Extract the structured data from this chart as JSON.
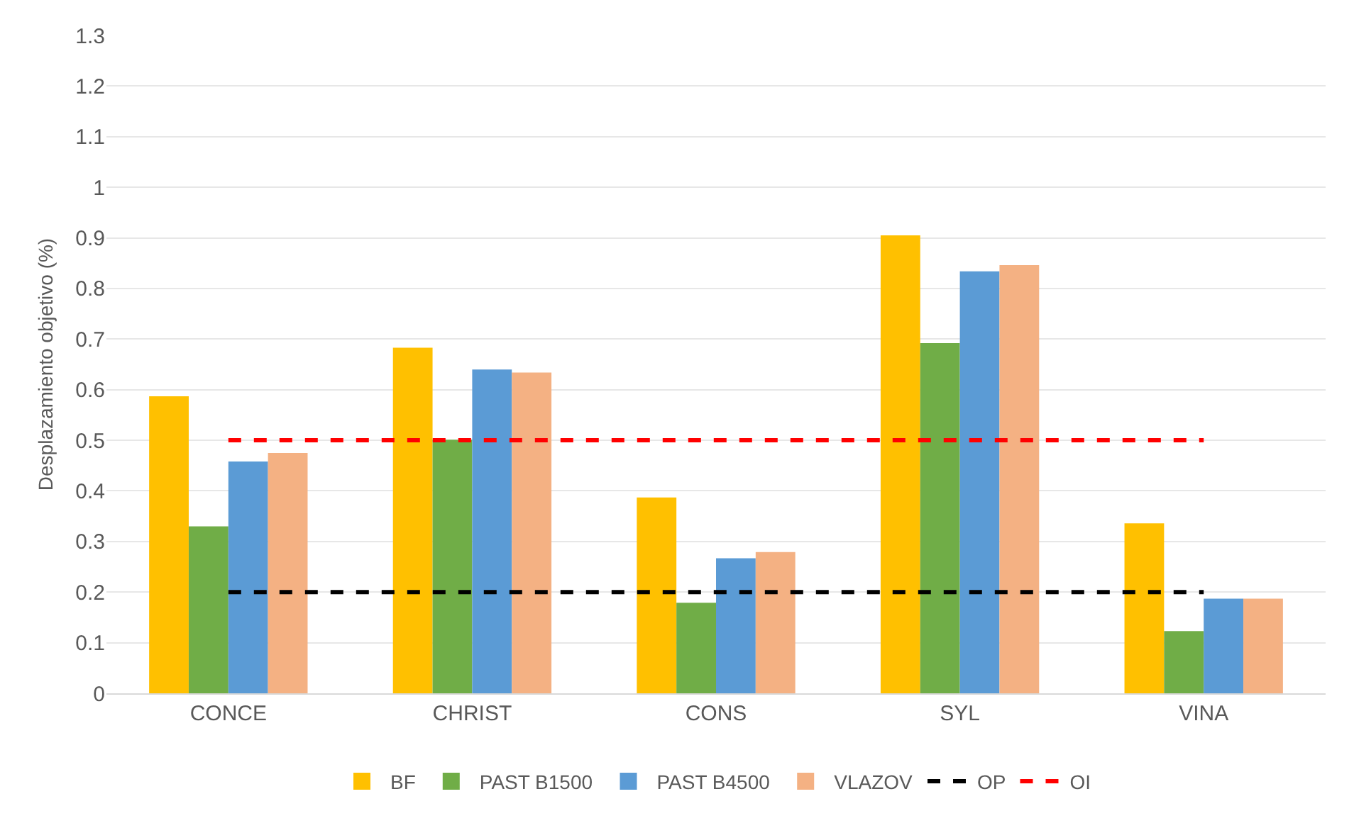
{
  "chart_data": {
    "type": "bar",
    "ylabel": "Desplazamiento objetivo (%)",
    "categories": [
      "CONCE",
      "CHRIST",
      "CONS",
      "SYL",
      "VINA"
    ],
    "series": [
      {
        "name": "BF",
        "color": "#ffc000",
        "values": [
          0.587,
          0.683,
          0.387,
          0.905,
          0.336
        ]
      },
      {
        "name": "PAST B1500",
        "color": "#70ad47",
        "values": [
          0.33,
          0.501,
          0.179,
          0.692,
          0.123
        ]
      },
      {
        "name": "PAST B4500",
        "color": "#5b9bd5",
        "values": [
          0.458,
          0.64,
          0.267,
          0.834,
          0.187
        ]
      },
      {
        "name": "VLAZOV",
        "color": "#f4b183",
        "values": [
          0.475,
          0.634,
          0.279,
          0.846,
          0.187
        ]
      },
      {
        "name": "OP",
        "type": "line",
        "color": "#000000",
        "line_style": "dashed",
        "values": [
          0.2,
          0.2,
          0.2,
          0.2,
          0.2
        ]
      },
      {
        "name": "OI",
        "type": "line",
        "color": "#ff0000",
        "line_style": "dashed",
        "values": [
          0.5,
          0.5,
          0.5,
          0.5,
          0.5
        ]
      }
    ],
    "ylim": [
      0,
      1.3
    ],
    "yticks": [
      0,
      0.1,
      0.2,
      0.3,
      0.4,
      0.5,
      0.6,
      0.7,
      0.8,
      0.9,
      1,
      1.1,
      1.2,
      1.3
    ],
    "grid": "y",
    "legend": "bottom"
  }
}
